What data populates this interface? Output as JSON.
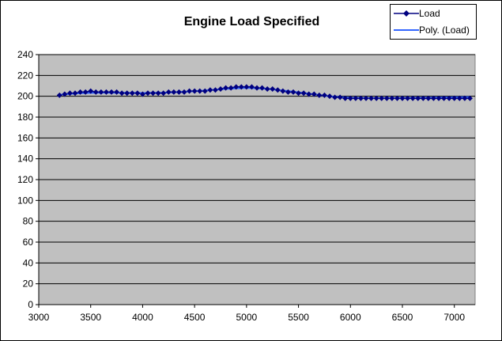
{
  "chart_data": {
    "type": "line",
    "title": "Engine Load Specified",
    "xlabel": "",
    "ylabel": "",
    "xlim": [
      3000,
      7200
    ],
    "ylim": [
      0,
      240
    ],
    "x_ticks": [
      3000,
      3500,
      4000,
      4500,
      5000,
      5500,
      6000,
      6500,
      7000
    ],
    "y_ticks": [
      0,
      20,
      40,
      60,
      80,
      100,
      120,
      140,
      160,
      180,
      200,
      220,
      240
    ],
    "grid": "horizontal",
    "legend_position": "top-right",
    "plot_background": "#c0c0c0",
    "series": [
      {
        "name": "Load",
        "style": "line-with-diamond-markers",
        "color": "#000080",
        "x": [
          3200,
          3250,
          3300,
          3350,
          3400,
          3450,
          3500,
          3550,
          3600,
          3650,
          3700,
          3750,
          3800,
          3850,
          3900,
          3950,
          4000,
          4050,
          4100,
          4150,
          4200,
          4250,
          4300,
          4350,
          4400,
          4450,
          4500,
          4550,
          4600,
          4650,
          4700,
          4750,
          4800,
          4850,
          4900,
          4950,
          5000,
          5050,
          5100,
          5150,
          5200,
          5250,
          5300,
          5350,
          5400,
          5450,
          5500,
          5550,
          5600,
          5650,
          5700,
          5750,
          5800,
          5850,
          5900,
          5950,
          6000,
          6050,
          6100,
          6150,
          6200,
          6250,
          6300,
          6350,
          6400,
          6450,
          6500,
          6550,
          6600,
          6650,
          6700,
          6750,
          6800,
          6850,
          6900,
          6950,
          7000,
          7050,
          7100,
          7150
        ],
        "y": [
          201,
          202,
          203,
          203,
          204,
          204,
          205,
          204,
          204,
          204,
          204,
          204,
          203,
          203,
          203,
          203,
          202,
          203,
          203,
          203,
          203,
          204,
          204,
          204,
          204,
          205,
          205,
          205,
          205,
          206,
          206,
          207,
          208,
          208,
          209,
          209,
          209,
          209,
          208,
          208,
          207,
          207,
          206,
          205,
          204,
          204,
          203,
          203,
          202,
          202,
          201,
          201,
          200,
          199,
          199,
          198,
          198,
          198,
          198,
          198,
          198,
          198,
          198,
          198,
          198,
          198,
          198,
          198,
          198,
          198,
          198,
          198,
          198,
          198,
          198,
          198,
          198,
          198,
          198,
          198
        ]
      },
      {
        "name": "Poly. (Load)",
        "style": "trendline",
        "color": "#3366ff",
        "x": [
          3200,
          3400,
          3600,
          3800,
          4000,
          4200,
          4400,
          4600,
          4800,
          5000,
          5200,
          5400,
          5600,
          5800,
          6000,
          6200,
          6400,
          6600,
          6800,
          7000,
          7150
        ],
        "y": [
          201.5,
          203.0,
          203.5,
          203.3,
          203.2,
          203.5,
          204.3,
          205.5,
          207.0,
          208.0,
          207.2,
          205.0,
          202.5,
          200.0,
          198.6,
          198.2,
          198.3,
          198.5,
          198.8,
          199.1,
          199.3
        ]
      }
    ]
  }
}
